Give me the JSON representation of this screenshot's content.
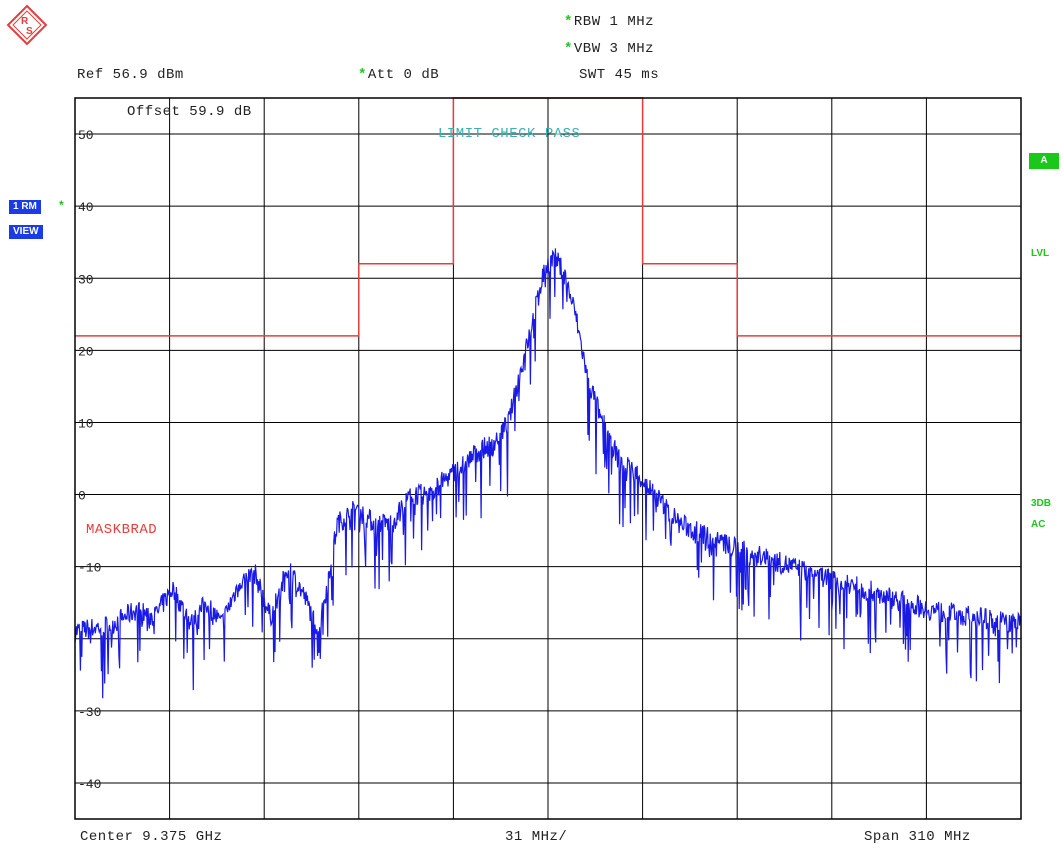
{
  "header": {
    "rbw": "RBW  1 MHz",
    "vbw": "VBW  3 MHz",
    "ref": "Ref   56.9 dBm",
    "att": "Att   0 dB",
    "swt": "SWT  45 ms",
    "offset": "Offset   59.9 dB"
  },
  "footer": {
    "center": "Center  9.375 GHz",
    "per_div": "31 MHz/",
    "span": "Span  310 MHz"
  },
  "side_left": {
    "trace_label": "1 RM",
    "view_label": "VIEW"
  },
  "side_right": {
    "a": "A",
    "lvl": "LVL",
    "db3": "3DB",
    "ac": "AC"
  },
  "annotations": {
    "limit_check": "LIMIT CHECK    PASS",
    "mask_name": "MASKBRAD"
  },
  "colors": {
    "trace": "#1a1ae6",
    "limit_line": "#e83c3c",
    "limit_text": "#3bb0b0",
    "grid": "#000000",
    "softkey_green": "#19c819"
  },
  "chart_data": {
    "type": "line",
    "title": "",
    "xlabel": "",
    "ylabel": "",
    "x_unit": "GHz",
    "xlim": [
      9.22,
      9.53
    ],
    "ylim": [
      -45,
      55
    ],
    "y_ticks": [
      "50",
      "40",
      "30",
      "20",
      "10",
      "0",
      "-10",
      "-30",
      "-40"
    ],
    "y_tick_values": [
      50,
      40,
      30,
      20,
      10,
      0,
      -10,
      -30,
      -40
    ],
    "grid": true,
    "series": [
      {
        "name": "",
        "role": "trace",
        "x": [
          9.22,
          9.232,
          9.24,
          9.246,
          9.252,
          9.258,
          9.263,
          9.268,
          9.274,
          9.279,
          9.284,
          9.29,
          9.295,
          9.3,
          9.306,
          9.312,
          9.318,
          9.324,
          9.33,
          9.336,
          9.341,
          9.347,
          9.352,
          9.357,
          9.362,
          9.366,
          9.37,
          9.373,
          9.375,
          9.377,
          9.38,
          9.384,
          9.388,
          9.393,
          9.398,
          9.404,
          9.41,
          9.418,
          9.428,
          9.44,
          9.455,
          9.47,
          9.485,
          9.5,
          9.515,
          9.53
        ],
        "y": [
          -19,
          -18,
          -16,
          -17,
          -13,
          -18,
          -15,
          -18,
          -12,
          -11,
          -17,
          -10,
          -14,
          -19,
          -4,
          -2,
          -4,
          -4,
          0,
          0,
          2,
          4,
          6,
          7,
          10,
          17,
          24,
          30,
          32,
          33,
          31,
          25,
          16,
          10,
          5,
          3,
          0,
          -4,
          -6,
          -8,
          -10,
          -12,
          -14,
          -16,
          -17,
          -18
        ]
      },
      {
        "name": "",
        "role": "limit",
        "x": [
          9.22,
          9.313,
          9.313,
          9.344,
          9.344,
          9.406,
          9.406,
          9.437,
          9.437,
          9.53
        ],
        "y": [
          22,
          22,
          32,
          32,
          57,
          57,
          32,
          32,
          22,
          22
        ]
      }
    ]
  }
}
